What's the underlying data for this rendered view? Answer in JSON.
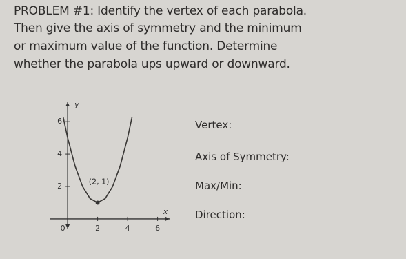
{
  "problem": {
    "lines": [
      "PROBLEM #1: Identify the vertex of each parabola.",
      "Then give the axis of symmetry and the minimum",
      "or maximum value of the function. Determine",
      "whether the parabola ups upward or downward."
    ]
  },
  "graph": {
    "x_label": "x",
    "y_label": "y",
    "xticks": [
      0,
      2,
      4,
      6
    ],
    "yticks": [
      2,
      4,
      6
    ],
    "xlim": [
      -1.2,
      6.8
    ],
    "ylim": [
      -0.6,
      7.2
    ],
    "vertex": {
      "x": 2,
      "y": 1,
      "label": "(2, 1)"
    },
    "curve": {
      "x": [
        -0.3,
        0,
        0.5,
        1,
        1.5,
        2,
        2.5,
        3,
        3.5,
        4,
        4.3
      ],
      "y": [
        6.29,
        5,
        3.25,
        2,
        1.25,
        1,
        1.25,
        2,
        3.25,
        5,
        6.29
      ]
    }
  },
  "questions": [
    "Vertex:",
    "Axis of Symmetry:",
    "Max/Min:",
    "Direction:"
  ]
}
